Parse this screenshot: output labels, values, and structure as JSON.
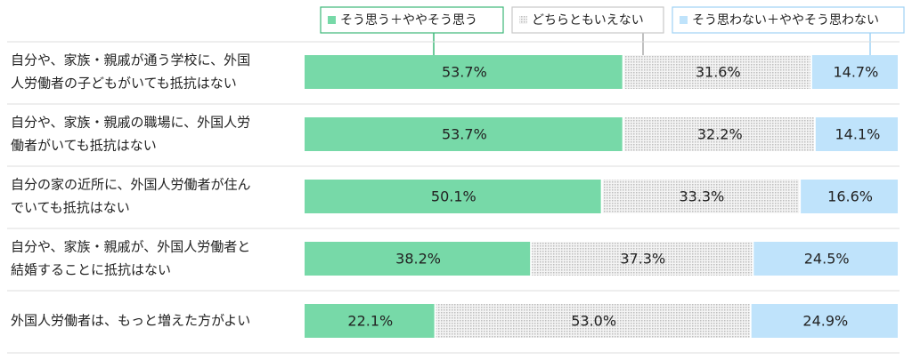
{
  "chart_data": {
    "type": "stacked-bar-horizontal",
    "categories": [
      [
        "自分や、家族・親戚が通う学校に、外国",
        "人労働者の子どもがいても抵抗はない"
      ],
      [
        "自分や、家族・親戚の職場に、外国人労",
        "働者がいても抵抗はない"
      ],
      [
        "自分の家の近所に、外国人労働者が住ん",
        "でいても抵抗はない"
      ],
      [
        "自分や、家族・親戚が、外国人労働者と",
        "結婚することに抵抗はない"
      ],
      [
        "外国人労働者は、もっと増えた方がよい"
      ]
    ],
    "series": [
      {
        "name": "そう思う＋ややそう思う",
        "color": "#77d9a8",
        "border": "#3cb878",
        "values": [
          53.7,
          53.7,
          50.1,
          38.2,
          22.1
        ],
        "value_labels": [
          "53.7%",
          "53.7%",
          "50.1%",
          "38.2%",
          "22.1%"
        ]
      },
      {
        "name": "どちらともいえない",
        "color": "#c8c8c8",
        "border": "#c8c8c8",
        "pattern": "dots",
        "values": [
          31.6,
          32.2,
          33.3,
          37.3,
          53.0
        ],
        "value_labels": [
          "31.6%",
          "32.2%",
          "33.3%",
          "37.3%",
          "53.0%"
        ]
      },
      {
        "name": "そう思わない＋ややそう思わない",
        "color": "#bfe3fb",
        "border": "#9fd3f5",
        "values": [
          14.7,
          14.1,
          16.6,
          24.5,
          24.9
        ],
        "value_labels": [
          "14.7%",
          "14.1%",
          "16.6%",
          "24.5%",
          "24.9%"
        ]
      }
    ],
    "xlim": [
      0,
      100
    ]
  }
}
